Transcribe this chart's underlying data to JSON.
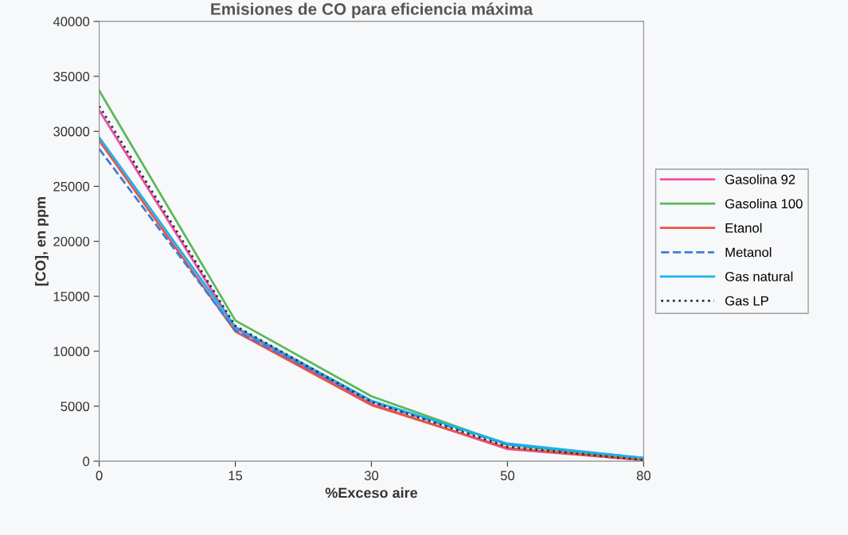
{
  "chart_data": {
    "type": "line",
    "title": "Emisiones de CO para eficiencia máxima",
    "xlabel": "%Exceso aire",
    "ylabel": "[CO], en ppm",
    "categories": [
      "0",
      "15",
      "30",
      "50",
      "80"
    ],
    "ylim": [
      0,
      40000
    ],
    "yticks": [
      0,
      5000,
      10000,
      15000,
      20000,
      25000,
      30000,
      35000,
      40000
    ],
    "grid": false,
    "legend": "right",
    "marker": "none",
    "series": [
      {
        "name": "Gasolina 92",
        "color": "#ee4fa6",
        "values": [
          31900,
          12100,
          5200,
          1100,
          100
        ]
      },
      {
        "name": "Gasolina 100",
        "color": "#5cb85c",
        "values": [
          33700,
          12800,
          5900,
          1500,
          100
        ]
      },
      {
        "name": "Etanol",
        "color": "#e8534a",
        "values": [
          29150,
          11800,
          5100,
          1200,
          100
        ]
      },
      {
        "name": "Metanol",
        "color": "#3a7fd5",
        "line_style": "dashed",
        "values": [
          28400,
          11900,
          5400,
          1500,
          300
        ]
      },
      {
        "name": "Gas natural",
        "color": "#1ab0ef",
        "values": [
          29450,
          12200,
          5500,
          1600,
          300
        ]
      },
      {
        "name": "Gas LP",
        "color": "#333333",
        "line_style": "dotted",
        "values": [
          32300,
          12300,
          5400,
          1300,
          100
        ]
      }
    ]
  }
}
